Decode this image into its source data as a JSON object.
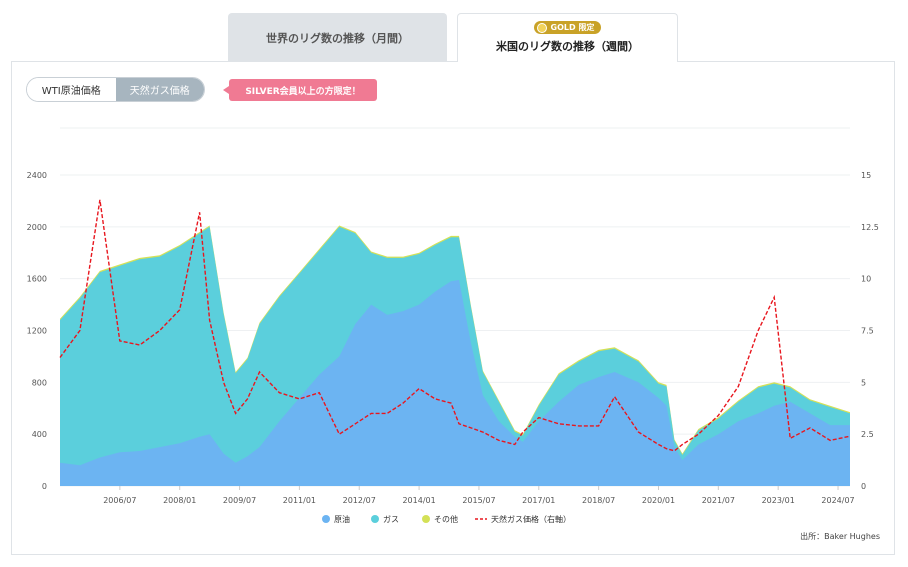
{
  "tabs": [
    {
      "label": "世界のリグ数の推移（月間）"
    },
    {
      "label": "米国のリグ数の推移（週間）",
      "badge": "GOLD 限定"
    }
  ],
  "toggle": {
    "option1": "WTI原油価格",
    "option2": "天然ガス価格"
  },
  "promo": "SILVER会員以上の方限定！",
  "source": "出所：Baker Hughes",
  "colors": {
    "oil": "#6cb4f2",
    "gas": "#5bcfdc",
    "other": "#d4e157",
    "price": "#e8161e"
  },
  "chart_data": {
    "type": "area",
    "left_axis_ticks": [
      "0",
      "400",
      "800",
      "1200",
      "1600",
      "2000",
      "2400"
    ],
    "right_axis_ticks": [
      "0",
      "2.5",
      "5",
      "7.5",
      "10",
      "12.5",
      "15"
    ],
    "x_ticks": [
      "2006/07",
      "2008/01",
      "2009/07",
      "2011/01",
      "2012/07",
      "2014/01",
      "2015/07",
      "2017/01",
      "2018/07",
      "2020/01",
      "2021/07",
      "2023/01",
      "2024/07"
    ],
    "x": [
      2005.0,
      2005.5,
      2006.0,
      2006.5,
      2007.0,
      2007.5,
      2008.0,
      2008.5,
      2008.75,
      2009.1,
      2009.4,
      2009.7,
      2010.0,
      2010.5,
      2011.0,
      2011.5,
      2012.0,
      2012.4,
      2012.8,
      2013.2,
      2013.6,
      2014.0,
      2014.4,
      2014.8,
      2015.0,
      2015.3,
      2015.6,
      2016.0,
      2016.4,
      2016.6,
      2017.0,
      2017.5,
      2018.0,
      2018.5,
      2018.9,
      2019.5,
      2020.0,
      2020.2,
      2020.4,
      2020.6,
      2021.0,
      2021.5,
      2022.0,
      2022.5,
      2022.9,
      2023.3,
      2023.8,
      2024.3,
      2024.8
    ],
    "series": [
      {
        "name": "原油",
        "values": [
          180,
          160,
          220,
          260,
          270,
          300,
          330,
          380,
          400,
          250,
          180,
          230,
          300,
          500,
          680,
          860,
          1000,
          1250,
          1400,
          1320,
          1350,
          1400,
          1500,
          1580,
          1590,
          1100,
          700,
          500,
          380,
          340,
          500,
          650,
          780,
          840,
          880,
          800,
          680,
          620,
          300,
          200,
          320,
          400,
          500,
          560,
          620,
          650,
          560,
          470,
          470
        ]
      },
      {
        "name": "ガス",
        "values": [
          1280,
          1450,
          1650,
          1700,
          1750,
          1770,
          1850,
          1950,
          2000,
          1330,
          870,
          980,
          1250,
          1460,
          1640,
          1820,
          2000,
          1950,
          1800,
          1760,
          1760,
          1790,
          1860,
          1920,
          1920,
          1380,
          880,
          650,
          420,
          390,
          620,
          860,
          960,
          1040,
          1060,
          960,
          790,
          770,
          350,
          240,
          430,
          520,
          650,
          760,
          790,
          760,
          660,
          610,
          560
        ]
      },
      {
        "name": "その他",
        "values": [
          1290,
          1460,
          1660,
          1710,
          1760,
          1780,
          1860,
          1960,
          2010,
          1340,
          880,
          990,
          1260,
          1470,
          1650,
          1830,
          2010,
          1960,
          1810,
          1770,
          1770,
          1800,
          1870,
          1930,
          1930,
          1390,
          890,
          660,
          430,
          400,
          630,
          870,
          970,
          1050,
          1070,
          970,
          800,
          780,
          360,
          250,
          440,
          530,
          660,
          770,
          800,
          770,
          670,
          620,
          570
        ]
      },
      {
        "name": "天然ガス価格（右軸）",
        "values": [
          6.2,
          7.5,
          13.8,
          7.0,
          6.8,
          7.5,
          8.5,
          13.2,
          8.0,
          5.0,
          3.5,
          4.2,
          5.5,
          4.5,
          4.2,
          4.5,
          2.5,
          3.0,
          3.5,
          3.5,
          4.0,
          4.7,
          4.2,
          4.0,
          3.0,
          2.8,
          2.6,
          2.2,
          2.0,
          2.6,
          3.3,
          3.0,
          2.9,
          2.9,
          4.3,
          2.6,
          2.0,
          1.8,
          1.7,
          2.0,
          2.5,
          3.4,
          4.8,
          7.5,
          9.1,
          2.3,
          2.8,
          2.2,
          2.4
        ]
      }
    ],
    "left_ylim": [
      0,
      2400
    ],
    "right_ylim": [
      0,
      15
    ],
    "xlim": [
      2005.0,
      2024.8
    ],
    "legend_position": "bottom",
    "grid": true
  }
}
